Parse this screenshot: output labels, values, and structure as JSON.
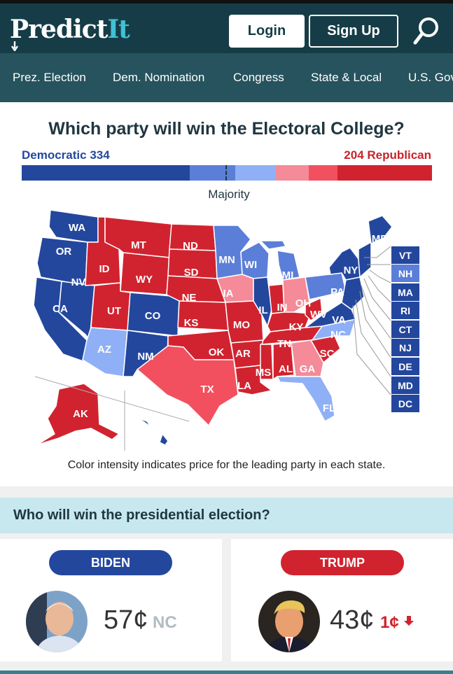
{
  "header": {
    "logo": {
      "main": "Predict",
      "accent": "It"
    },
    "login_label": "Login",
    "signup_label": "Sign Up"
  },
  "nav": {
    "items": [
      "Prez. Election",
      "Dem. Nomination",
      "Congress",
      "State & Local",
      "U.S. Gov"
    ]
  },
  "electoral": {
    "title": "Which party will win the Electoral College?",
    "dem_label": "Democratic 334",
    "rep_label": "204 Republican",
    "majority_label": "Majority",
    "note": "Color intensity indicates price for the leading party in each state."
  },
  "states": {
    "WA": "WA",
    "OR": "OR",
    "CA": "CA",
    "NV": "NV",
    "ID": "ID",
    "MT": "MT",
    "WY": "WY",
    "UT": "UT",
    "AZ": "AZ",
    "CO": "CO",
    "NM": "NM",
    "ND": "ND",
    "SD": "SD",
    "NE": "NE",
    "KS": "KS",
    "OK": "OK",
    "TX": "TX",
    "MN": "MN",
    "IA": "IA",
    "MO": "MO",
    "AR": "AR",
    "LA": "LA",
    "WI": "WI",
    "IL": "IL",
    "MI": "MI",
    "IN": "IN",
    "OH": "OH",
    "KY": "KY",
    "TN": "TN",
    "MS": "MS",
    "AL": "AL",
    "GA": "GA",
    "FL": "FL",
    "SC": "SC",
    "NC": "NC",
    "VA": "VA",
    "WV": "WV",
    "PA": "PA",
    "NY": "NY",
    "ME": "ME",
    "AK": "AK"
  },
  "small_states": [
    "VT",
    "NH",
    "MA",
    "RI",
    "CT",
    "NJ",
    "DE",
    "MD",
    "DC"
  ],
  "colors": {
    "dem_strong": "#24479e",
    "dem_lean": "#5b7fd8",
    "dem_tilt": "#8fb0f7",
    "rep_tilt": "#f58a98",
    "rep_lean": "#f2505e",
    "rep_strong": "#d1232f",
    "header_bg": "#163d47",
    "nav_bg": "#26535d",
    "question_bg": "#c7e8ef"
  },
  "question": {
    "label": "Who will win the presidential election?"
  },
  "candidates": {
    "biden": {
      "name": "BIDEN",
      "price": "57¢",
      "change": "NC",
      "color": "#24479e"
    },
    "trump": {
      "name": "TRUMP",
      "price": "43¢",
      "change": "1¢",
      "change_direction": "down",
      "color": "#d1232f"
    }
  }
}
